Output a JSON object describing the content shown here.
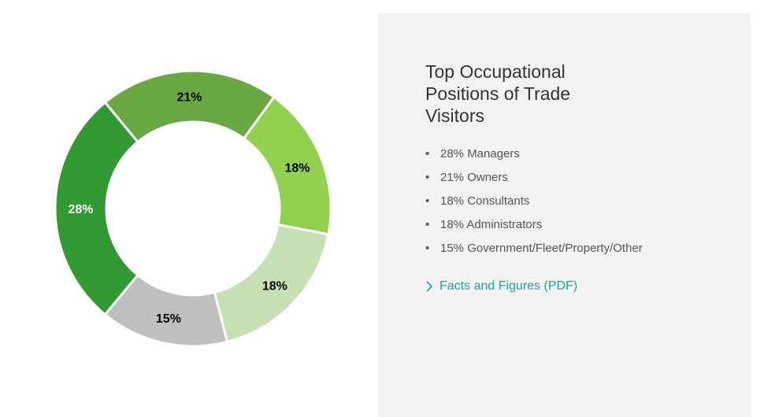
{
  "panel": {
    "title": "Top Occupational Positions of Trade Visitors",
    "items": [
      "28% Managers",
      "21% Owners",
      "18% Consultants",
      "18% Administrators",
      "15% Government/Fleet/Property/Other"
    ],
    "link_label": "Facts and Figures (PDF)",
    "link_color": "#1fa39a",
    "background": "#f2f2f2"
  },
  "chart_data": {
    "type": "pie",
    "variant": "donut",
    "categories": [
      "Managers",
      "Owners",
      "Consultants",
      "Administrators",
      "Government/Fleet/Property/Other"
    ],
    "values": [
      28,
      21,
      18,
      18,
      15
    ],
    "labels": [
      "28%",
      "21%",
      "18%",
      "18%",
      "15%"
    ],
    "colors": [
      "#339933",
      "#6aa843",
      "#92d050",
      "#c5e0b4",
      "#bfbfbf"
    ],
    "label_colors": [
      "#ffffff",
      "#000000",
      "#000000",
      "#000000",
      "#000000"
    ],
    "title": "",
    "legend": "none"
  }
}
